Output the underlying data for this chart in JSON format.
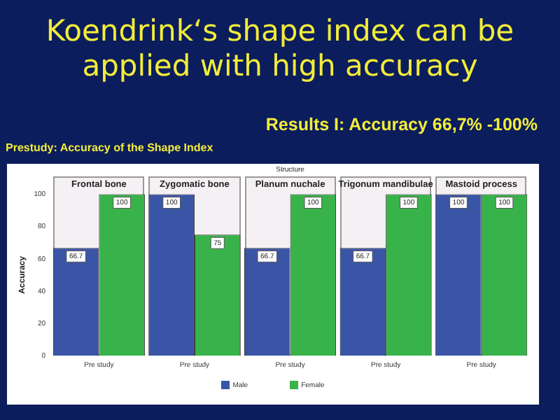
{
  "chart_data": {
    "type": "bar",
    "xlabel": "Structure",
    "ylabel": "Accuracy",
    "categories": [
      "Frontal bone",
      "Zygomatic bone",
      "Planum nuchale",
      "Trigonum mandibulae",
      "Mastoid process"
    ],
    "ylim": [
      0,
      100
    ],
    "yticks": [
      0,
      20,
      40,
      60,
      80,
      100
    ],
    "data_labels": true,
    "legend": "bottom",
    "annotations": [
      "Koendrink‘s shape index can be applied with high accuracy",
      "Results I: Accuracy 66,7% -100%",
      "Prestudy: Accuracy of the Shape Index",
      "Pre study",
      "Pre study",
      "Pre study",
      "Pre study",
      "Pre study"
    ],
    "series": [
      {
        "name": "Male",
        "color": "#3a55a6",
        "values": [
          66.7,
          100,
          66.7,
          66.7,
          100
        ]
      },
      {
        "name": "Female",
        "color": "#37b34a",
        "values": [
          100,
          75,
          100,
          100,
          100
        ]
      }
    ]
  }
}
